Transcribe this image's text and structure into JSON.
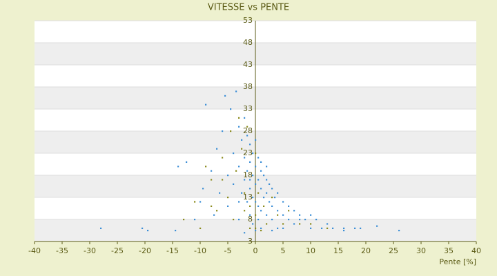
{
  "chart_data": {
    "type": "scatter",
    "title": "VITESSE vs PENTE",
    "x_label": "Pente [%]",
    "xlim": [
      -40,
      40
    ],
    "xticks": [
      -40,
      -35,
      -30,
      -25,
      -20,
      -15,
      -10,
      -5,
      0,
      5,
      10,
      15,
      20,
      25,
      30,
      35,
      40
    ],
    "ylim": [
      3,
      53
    ],
    "yticks": [
      3,
      8,
      13,
      18,
      23,
      28,
      33,
      38,
      43,
      48,
      53
    ],
    "grid": true,
    "series": [
      {
        "color": "#3d8fd6",
        "x": [
          -28,
          -20.5,
          -19.5,
          -14.5,
          -14,
          -12.5,
          -11,
          -10,
          -9.5,
          -9,
          -8,
          -7.5,
          -7,
          -6.5,
          -6,
          -5.5,
          -5,
          -5,
          -4.5,
          -4,
          -4,
          -3.5,
          -3,
          -3,
          -3,
          -2.5,
          -2.5,
          -2,
          -2,
          -2,
          -2,
          -1.5,
          -1.5,
          -1.5,
          -1,
          -1,
          -1,
          -1,
          -0.5,
          -0.5,
          -0.5,
          0,
          0,
          0,
          0,
          0,
          0.5,
          0.5,
          0.5,
          1,
          1,
          1,
          1,
          1.5,
          1.5,
          2,
          2,
          2,
          2.5,
          2.5,
          3,
          3,
          3,
          3.5,
          4,
          4,
          4,
          5,
          5,
          6,
          6,
          7,
          7,
          8,
          8,
          9,
          10,
          10,
          11,
          12,
          13,
          14,
          16,
          16,
          18,
          19,
          22,
          26,
          -3,
          -1,
          1,
          2,
          0.5,
          -0.5,
          3,
          5
        ],
        "values": [
          6,
          6,
          5.5,
          5.5,
          20,
          21,
          8,
          12,
          15,
          34,
          19,
          9,
          24,
          14,
          28,
          36,
          18,
          11,
          33,
          23,
          16,
          37,
          29,
          20,
          8,
          26,
          14,
          31,
          22,
          17,
          5,
          27,
          19,
          12,
          25,
          21,
          15,
          9,
          23,
          18,
          13,
          26,
          20,
          16,
          12,
          5.5,
          22,
          17,
          11,
          19,
          15,
          10,
          6,
          18,
          13,
          17,
          14,
          9,
          16,
          12,
          15,
          11,
          8,
          13,
          14,
          10,
          6,
          12,
          9,
          11,
          8,
          10,
          7,
          9,
          8,
          8,
          9,
          6,
          8,
          6,
          7,
          6,
          6,
          5.5,
          6,
          6,
          6.5,
          5.5,
          12,
          17,
          21,
          20,
          8,
          7,
          5.5,
          6
        ]
      },
      {
        "color": "#8b8b1e",
        "x": [
          -13,
          -11,
          -10,
          -9,
          -8,
          -7,
          -6,
          -5,
          -4.5,
          -4,
          -3.5,
          -3,
          -2.5,
          -2,
          -1.5,
          -1,
          -1,
          0,
          0,
          0.5,
          1,
          1.5,
          2,
          3,
          4,
          5,
          6,
          8,
          10,
          13,
          -2,
          0,
          -6,
          -8
        ],
        "values": [
          8,
          12,
          6,
          20,
          17,
          10,
          22,
          13,
          28,
          8,
          19,
          31,
          24,
          14,
          29,
          11,
          6,
          23,
          9,
          14,
          5.5,
          11,
          7,
          13,
          9,
          7,
          10,
          7,
          7,
          6,
          10,
          6,
          17,
          11
        ]
      }
    ]
  }
}
